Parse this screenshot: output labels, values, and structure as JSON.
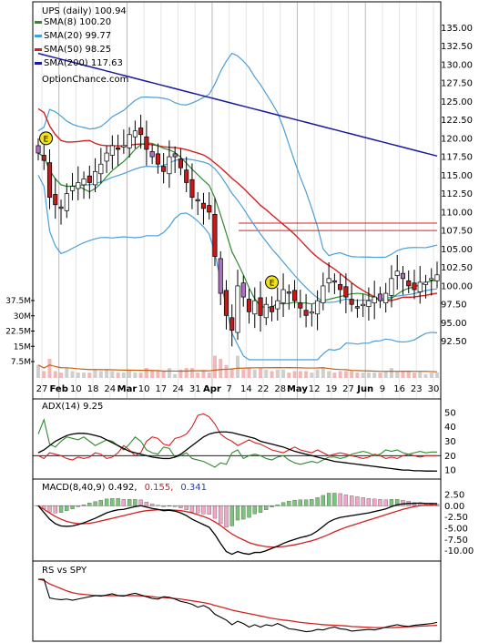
{
  "chart_data": {
    "type": "stock-chart",
    "title": "UPS (daily) 100.94",
    "watermark": "OptionChance.com",
    "legend": [
      {
        "label": "SMA(8) 100.20",
        "color": "#2e8b2e"
      },
      {
        "label": "SMA(20) 99.77",
        "color": "#4a9fd8"
      },
      {
        "label": "SMA(50) 98.25",
        "color": "#d42020"
      },
      {
        "label": "SMA(200) 117.63",
        "color": "#1a1aa0"
      }
    ],
    "x_ticks": [
      "27",
      "Feb",
      "10",
      "18",
      "24",
      "Mar",
      "10",
      "17",
      "24",
      "31",
      "Apr",
      "7",
      "14",
      "22",
      "28",
      "May",
      "12",
      "19",
      "27",
      "Jun",
      "9",
      "16",
      "23",
      "30"
    ],
    "price_axis": {
      "labels": [
        "135.00",
        "132.50",
        "130.00",
        "127.50",
        "125.00",
        "122.50",
        "120.00",
        "117.50",
        "115.00",
        "112.50",
        "110.00",
        "107.50",
        "105.00",
        "102.50",
        "100.00",
        "97.50",
        "95.00",
        "92.50"
      ],
      "min": 90,
      "max": 137.5
    },
    "volume_axis": {
      "labels": [
        "37.5M",
        "30M",
        "22.5M",
        "15M",
        "7.5M"
      ]
    },
    "earnings_markers": [
      "E",
      "E"
    ],
    "closes": [
      118,
      117,
      112,
      111,
      110.5,
      112.5,
      113.5,
      114,
      114.5,
      114,
      115.5,
      116.5,
      118,
      119,
      118.5,
      119,
      120.5,
      121,
      120.5,
      118.5,
      117.5,
      116.5,
      115.5,
      117.5,
      117.5,
      116,
      114,
      112,
      111.5,
      110.5,
      110,
      104,
      99,
      96,
      94,
      100,
      98.5,
      96.5,
      98,
      96,
      97.5,
      96.5,
      98,
      99.5,
      99,
      98,
      97,
      96,
      96.5,
      98,
      100,
      101,
      100.5,
      99.5,
      98.5,
      97.5,
      97,
      97.5,
      98,
      98.5,
      98,
      99,
      101,
      102,
      101,
      100,
      99.5,
      100.5,
      100.5,
      101,
      101.5
    ],
    "sma50_flat_lines": [
      107.5,
      108.5
    ],
    "adx": {
      "label": "ADX(14) 9.25",
      "axis_labels": [
        "50",
        "40",
        "30",
        "20",
        "10"
      ],
      "min": 5,
      "max": 55,
      "threshold": 20,
      "adx": [
        22,
        24,
        27,
        30,
        32,
        34,
        35,
        35.5,
        35.5,
        35,
        34,
        33,
        31,
        29,
        27,
        25,
        23,
        22,
        21,
        20,
        19,
        18.5,
        18,
        18,
        19,
        21,
        24,
        27,
        30,
        33,
        35,
        36,
        36.5,
        36.5,
        36,
        35,
        34,
        33,
        32,
        30,
        29,
        28,
        27,
        26,
        24.5,
        23,
        22,
        21,
        20,
        19,
        18,
        17,
        16,
        15.5,
        15,
        14.5,
        14,
        13.5,
        13,
        12.5,
        12,
        11.5,
        11,
        10.5,
        10,
        10,
        9.5,
        9.5,
        9.3,
        9.3,
        9.25
      ],
      "plus_di": [
        35,
        45,
        28,
        26,
        30,
        33,
        32,
        31,
        33,
        30,
        27,
        29,
        31,
        30,
        27,
        24,
        28,
        33,
        30,
        24,
        22,
        21,
        26,
        25,
        19,
        20,
        22,
        18,
        17,
        16,
        14,
        12,
        15,
        14,
        22,
        24,
        18,
        20,
        21,
        20,
        18,
        17,
        19,
        20,
        17,
        15,
        14,
        15,
        16,
        15,
        17,
        19,
        19,
        18,
        19,
        21,
        22,
        23,
        22,
        20,
        21,
        24,
        23,
        24,
        22,
        21,
        22,
        23,
        22,
        22.5,
        22.5
      ],
      "minus_di": [
        20,
        18,
        22,
        21,
        20,
        18,
        17,
        19,
        18,
        19,
        22,
        21,
        18,
        19,
        22,
        27,
        24,
        20,
        22,
        30,
        33,
        32,
        28,
        27,
        32,
        33,
        35,
        40,
        48,
        49,
        47,
        42,
        35,
        32,
        30,
        27,
        29,
        31,
        29,
        28,
        26,
        24,
        23,
        22,
        24,
        26,
        24,
        23,
        22,
        24,
        22,
        20,
        21,
        22,
        21,
        20,
        19,
        18,
        19,
        21,
        20,
        18,
        19,
        18,
        20,
        21,
        20,
        19,
        20,
        20,
        20
      ]
    },
    "macd": {
      "label": "MACD(8,40,9) 0.492,",
      "signal_value": "0.155,",
      "hist_value": "0.341",
      "axis_labels": [
        "2.50",
        "0.00",
        "-2.50",
        "-5.00",
        "-7.50",
        "-10.00"
      ],
      "min": -11.5,
      "max": 3.5,
      "macd": [
        0,
        -1.5,
        -3,
        -4,
        -4.5,
        -4.6,
        -4.5,
        -4.2,
        -3.8,
        -3.3,
        -2.8,
        -2.2,
        -1.6,
        -1.2,
        -0.9,
        -0.8,
        -0.5,
        -0.2,
        0,
        -0.3,
        -0.6,
        -0.8,
        -1.1,
        -1,
        -1.2,
        -1.6,
        -2.2,
        -3,
        -3.6,
        -4.2,
        -4.8,
        -6.4,
        -8.4,
        -10.2,
        -10.8,
        -10.2,
        -10.6,
        -10.8,
        -10.4,
        -10.4,
        -10,
        -9.5,
        -9,
        -8.4,
        -7.9,
        -7.5,
        -7.1,
        -6.8,
        -6.4,
        -5.6,
        -4.6,
        -3.6,
        -3,
        -2.6,
        -2.4,
        -2.2,
        -2,
        -1.8,
        -1.6,
        -1.3,
        -1,
        -0.7,
        -0.2,
        0.2,
        0.4,
        0.5,
        0.5,
        0.6,
        0.5,
        0.5,
        0.49
      ],
      "signal": [
        0,
        -0.8,
        -1.6,
        -2.4,
        -3,
        -3.5,
        -3.8,
        -4,
        -4,
        -3.9,
        -3.7,
        -3.4,
        -3.1,
        -2.8,
        -2.5,
        -2.2,
        -1.9,
        -1.6,
        -1.3,
        -1.1,
        -1,
        -0.9,
        -0.9,
        -0.9,
        -1,
        -1.1,
        -1.3,
        -1.6,
        -2,
        -2.4,
        -2.9,
        -3.6,
        -4.4,
        -5.4,
        -6.3,
        -7,
        -7.6,
        -8.2,
        -8.6,
        -8.9,
        -9.1,
        -9.2,
        -9.2,
        -9.1,
        -8.9,
        -8.7,
        -8.4,
        -8.1,
        -7.8,
        -7.4,
        -6.9,
        -6.4,
        -5.8,
        -5.3,
        -4.8,
        -4.4,
        -4,
        -3.6,
        -3.2,
        -2.8,
        -2.4,
        -2,
        -1.6,
        -1.2,
        -0.8,
        -0.5,
        -0.2,
        0,
        0.1,
        0.15,
        0.155
      ],
      "histogram": [
        0,
        -0.7,
        -1.4,
        -1.6,
        -1.5,
        -1.1,
        -0.7,
        -0.2,
        0.2,
        0.6,
        0.9,
        1.2,
        1.5,
        1.6,
        1.6,
        1.4,
        1.4,
        1.4,
        1.3,
        0.8,
        0.4,
        0.1,
        -0.2,
        -0.1,
        -0.2,
        -0.5,
        -0.9,
        -1.4,
        -1.6,
        -1.8,
        -1.9,
        -2.8,
        -4,
        -4.8,
        -4.5,
        -3.2,
        -3,
        -2.6,
        -1.8,
        -1.5,
        -0.9,
        -0.3,
        0.2,
        0.7,
        1,
        1.2,
        1.3,
        1.3,
        1.4,
        1.8,
        2.3,
        2.8,
        2.8,
        2.7,
        2.4,
        2.2,
        2,
        1.8,
        1.6,
        1.5,
        1.4,
        1.3,
        1.4,
        1.4,
        1.2,
        1,
        0.7,
        0.6,
        0.4,
        0.35,
        0.341
      ]
    },
    "rs": {
      "label": "RS vs SPY",
      "rs": [
        100,
        100,
        68,
        66,
        65,
        66,
        64,
        66,
        68,
        70,
        72,
        71,
        73,
        75,
        72,
        71,
        74,
        76,
        73,
        70,
        67,
        66,
        70,
        69,
        66,
        62,
        60,
        57,
        52,
        55,
        50,
        40,
        35,
        30,
        22,
        28,
        24,
        18,
        22,
        18,
        22,
        20,
        24,
        20,
        15,
        14,
        12,
        10,
        11,
        14,
        13,
        16,
        18,
        15,
        14,
        11,
        12,
        13,
        14,
        13,
        15,
        18,
        20,
        22,
        20,
        19,
        21,
        22,
        23,
        24,
        26
      ],
      "sma": [
        100,
        98,
        92,
        88,
        84,
        80,
        77,
        75,
        74,
        73,
        72,
        72,
        72,
        72,
        72,
        72,
        72,
        72,
        71.5,
        71,
        70,
        69,
        68.5,
        68,
        67,
        66,
        64.5,
        63,
        61.5,
        60,
        58,
        55,
        52.5,
        50,
        47,
        45,
        43,
        41,
        39,
        37,
        35,
        33,
        31.5,
        30,
        29,
        27.5,
        26,
        25,
        24,
        23,
        22,
        21.5,
        21,
        20.5,
        20,
        19,
        18.5,
        18,
        17.5,
        17,
        17,
        17,
        17,
        17.5,
        18,
        18.5,
        19,
        19.5,
        20,
        20.5,
        21
      ]
    }
  }
}
